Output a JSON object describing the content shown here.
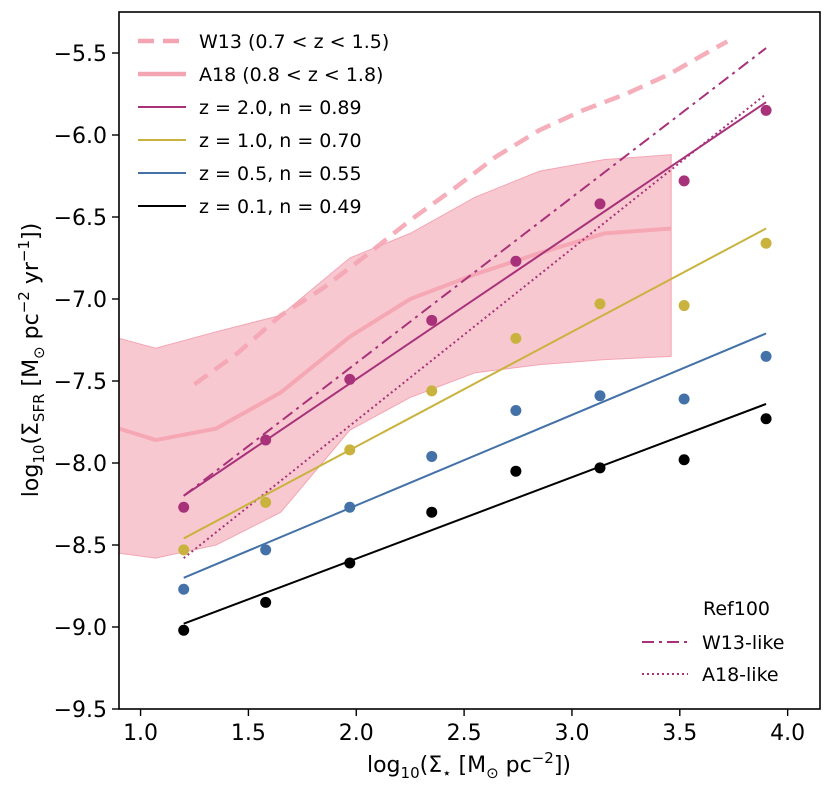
{
  "chart_data": {
    "type": "line",
    "title": "",
    "xlabel": "log10(Σ⋆ [M⊙ pc⁻²])",
    "ylabel": "log10(ΣSFR [M⊙ pc⁻² yr⁻¹])",
    "xlim": [
      0.9,
      4.15
    ],
    "ylim": [
      -9.5,
      -5.25
    ],
    "x_ticks": [
      1.0,
      1.5,
      2.0,
      2.5,
      3.0,
      3.5,
      4.0
    ],
    "x_tick_labels": [
      "1.0",
      "1.5",
      "2.0",
      "2.5",
      "3.0",
      "3.5",
      "4.0"
    ],
    "y_ticks": [
      -5.5,
      -6.0,
      -6.5,
      -7.0,
      -7.5,
      -8.0,
      -8.5,
      -9.0,
      -9.5
    ],
    "y_tick_labels": [
      "−5.5",
      "−6.0",
      "−6.5",
      "−7.0",
      "−7.5",
      "−8.0",
      "−8.5",
      "−9.0",
      "−9.5"
    ],
    "grid": false,
    "colors": {
      "obs_pink": "#f4a5b2",
      "band_fill": "#f5b5c2",
      "z2": "#a8327a",
      "z1": "#c9b33e",
      "z05": "#4472a8",
      "z01": "#000000"
    },
    "legend_main": {
      "position": "top-left",
      "entries": [
        {
          "label": "W13 (0.7 < z < 1.5)",
          "color": "#f4a5b2",
          "style": "dashed-thick"
        },
        {
          "label": "A18 (0.8 < z < 1.8)",
          "color": "#f4a5b2",
          "style": "solid-thick"
        },
        {
          "label": "z = 2.0,  n = 0.89",
          "color": "#a8327a",
          "style": "solid"
        },
        {
          "label": "z = 1.0,  n = 0.70",
          "color": "#c9b33e",
          "style": "solid"
        },
        {
          "label": "z = 0.5,  n = 0.55",
          "color": "#4472a8",
          "style": "solid"
        },
        {
          "label": "z = 0.1,  n = 0.49",
          "color": "#000000",
          "style": "solid"
        }
      ]
    },
    "legend_secondary": {
      "position": "bottom-right",
      "title": "Ref100",
      "entries": [
        {
          "label": "W13-like",
          "color": "#a8327a",
          "style": "dashdot"
        },
        {
          "label": "A18-like",
          "color": "#a8327a",
          "style": "dotted"
        }
      ]
    },
    "w13_observed": {
      "name": "W13 (0.7 < z < 1.5)",
      "x": [
        1.25,
        1.45,
        1.65,
        1.85,
        2.05,
        2.25,
        2.45,
        2.65,
        2.85,
        3.05,
        3.25,
        3.45,
        3.65,
        3.72
      ],
      "y": [
        -7.52,
        -7.33,
        -7.1,
        -6.93,
        -6.73,
        -6.52,
        -6.33,
        -6.13,
        -5.97,
        -5.85,
        -5.75,
        -5.63,
        -5.48,
        -5.43
      ]
    },
    "a18_observed": {
      "name": "A18 (0.8 < z < 1.8)",
      "x": [
        0.9,
        1.07,
        1.35,
        1.65,
        1.97,
        2.25,
        2.55,
        2.85,
        3.15,
        3.46
      ],
      "y": [
        -7.79,
        -7.86,
        -7.79,
        -7.57,
        -7.23,
        -7.0,
        -6.85,
        -6.72,
        -6.6,
        -6.57
      ],
      "band_upper": [
        -7.24,
        -7.3,
        -7.2,
        -7.1,
        -6.75,
        -6.6,
        -6.38,
        -6.22,
        -6.15,
        -6.12
      ],
      "band_lower": [
        -8.55,
        -8.58,
        -8.5,
        -8.3,
        -7.8,
        -7.6,
        -7.45,
        -7.4,
        -7.37,
        -7.35
      ]
    },
    "series": [
      {
        "name": "z = 2.0, n = 0.89",
        "color": "#a8327a",
        "n": 0.89,
        "x": [
          1.2,
          1.58,
          1.97,
          2.35,
          2.74,
          3.13,
          3.52,
          3.9
        ],
        "y": [
          -8.27,
          -7.86,
          -7.49,
          -7.13,
          -6.77,
          -6.42,
          -6.28,
          -5.85
        ],
        "fit": {
          "x": [
            1.2,
            3.9
          ],
          "y": [
            -8.2,
            -5.8
          ]
        }
      },
      {
        "name": "z = 1.0, n = 0.70",
        "color": "#c9b33e",
        "n": 0.7,
        "x": [
          1.2,
          1.58,
          1.97,
          2.35,
          2.74,
          3.13,
          3.52,
          3.9
        ],
        "y": [
          -8.53,
          -8.24,
          -7.92,
          -7.56,
          -7.24,
          -7.03,
          -7.04,
          -6.66
        ],
        "fit": {
          "x": [
            1.2,
            3.9
          ],
          "y": [
            -8.46,
            -6.57
          ]
        }
      },
      {
        "name": "z = 0.5, n = 0.55",
        "color": "#4472a8",
        "n": 0.55,
        "x": [
          1.2,
          1.58,
          1.97,
          2.35,
          2.74,
          3.13,
          3.52,
          3.9
        ],
        "y": [
          -8.77,
          -8.53,
          -8.27,
          -7.96,
          -7.68,
          -7.59,
          -7.61,
          -7.35
        ],
        "fit": {
          "x": [
            1.2,
            3.9
          ],
          "y": [
            -8.7,
            -7.21
          ]
        }
      },
      {
        "name": "z = 0.1, n = 0.49",
        "color": "#000000",
        "n": 0.49,
        "x": [
          1.2,
          1.58,
          1.97,
          2.35,
          2.74,
          3.13,
          3.52,
          3.9
        ],
        "y": [
          -9.02,
          -8.85,
          -8.61,
          -8.3,
          -8.05,
          -8.03,
          -7.98,
          -7.73
        ],
        "fit": {
          "x": [
            1.2,
            3.9
          ],
          "y": [
            -8.98,
            -7.64
          ]
        }
      }
    ],
    "ref100_lines": [
      {
        "name": "W13-like",
        "color": "#a8327a",
        "style": "dashdot",
        "x": [
          1.2,
          3.9
        ],
        "y": [
          -8.2,
          -5.47
        ]
      },
      {
        "name": "A18-like",
        "color": "#a8327a",
        "style": "dotted",
        "x": [
          1.2,
          3.9
        ],
        "y": [
          -8.58,
          -5.75
        ]
      }
    ]
  }
}
